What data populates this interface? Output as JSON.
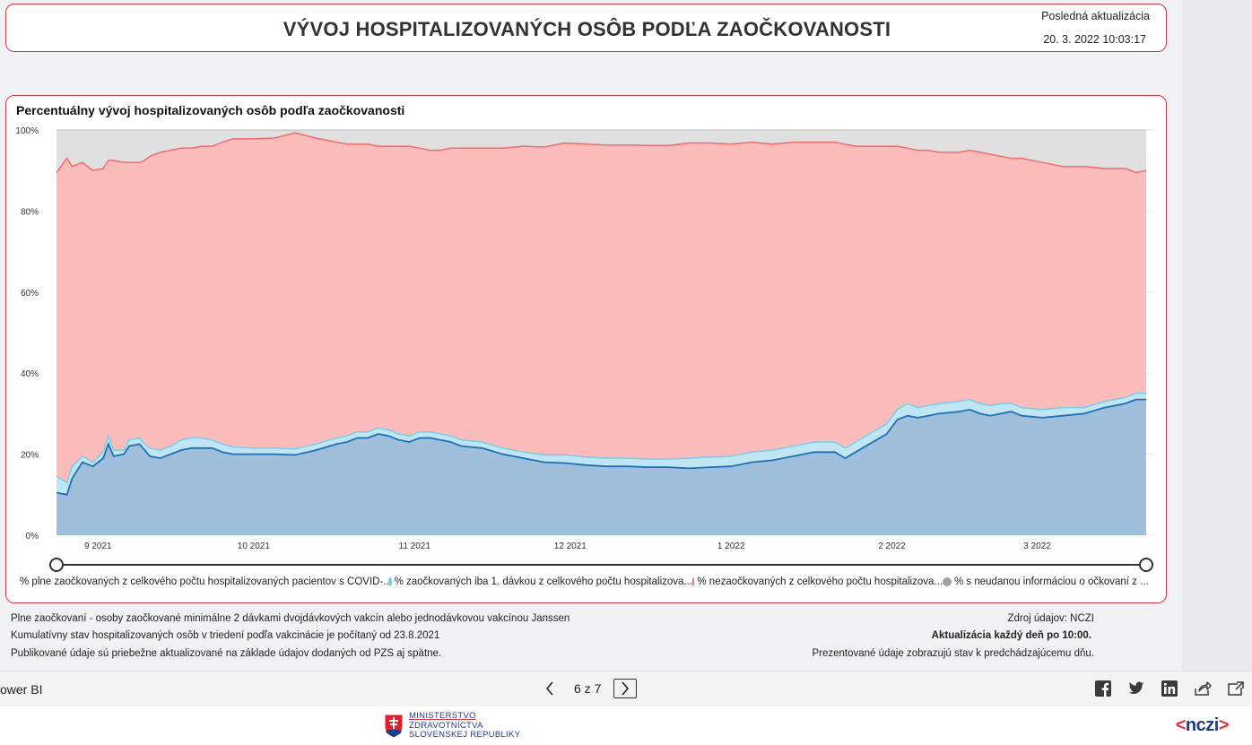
{
  "header": {
    "title": "VÝVOJ HOSPITALIZOVANÝCH OSÔB PODĽA ZAOČKOVANOSTI",
    "last_update_label": "Posledná aktualizácia",
    "last_update_value": "20. 3. 2022 10:03:17"
  },
  "chart_data": {
    "type": "area",
    "stacked": true,
    "title": "Percentuálny vývoj hospitalizovaných osôb podľa zaočkovanosti",
    "y_ticks": [
      "0%",
      "20%",
      "40%",
      "60%",
      "80%",
      "100%"
    ],
    "ylim": [
      0,
      100
    ],
    "x_ticks": [
      "9 2021",
      "10 2021",
      "11 2021",
      "12 2021",
      "1 2022",
      "2 2022",
      "3 2022"
    ],
    "x_range_days": [
      0,
      210
    ],
    "x_tick_days": [
      8,
      38,
      69,
      99,
      130,
      161,
      189
    ],
    "series": [
      {
        "name": "% plne zaočkovaných z celkového počtu hospitalizovaných pacientov s COVID-...",
        "color": "#1f6fb4",
        "fill": "#a0bfdc",
        "points": [
          [
            0,
            10.5
          ],
          [
            2,
            10
          ],
          [
            3,
            14
          ],
          [
            5,
            18
          ],
          [
            7,
            17
          ],
          [
            9,
            19
          ],
          [
            10,
            22.5
          ],
          [
            11,
            19.5
          ],
          [
            13,
            20
          ],
          [
            14,
            22
          ],
          [
            16,
            22.5
          ],
          [
            17,
            21
          ],
          [
            18,
            19.5
          ],
          [
            20,
            19
          ],
          [
            22,
            20
          ],
          [
            24,
            21
          ],
          [
            26,
            21.5
          ],
          [
            28,
            21.5
          ],
          [
            30,
            21.5
          ],
          [
            32,
            20.5
          ],
          [
            34,
            20
          ],
          [
            38,
            20
          ],
          [
            42,
            20
          ],
          [
            46,
            19.8
          ],
          [
            50,
            21
          ],
          [
            54,
            22.5
          ],
          [
            56,
            23
          ],
          [
            58,
            24
          ],
          [
            60,
            24
          ],
          [
            62,
            25
          ],
          [
            64,
            24.5
          ],
          [
            66,
            23.5
          ],
          [
            68,
            23
          ],
          [
            70,
            24
          ],
          [
            72,
            24
          ],
          [
            74,
            23.5
          ],
          [
            76,
            23
          ],
          [
            78,
            22
          ],
          [
            82,
            21.5
          ],
          [
            86,
            20
          ],
          [
            90,
            19
          ],
          [
            94,
            18
          ],
          [
            98,
            17.8
          ],
          [
            102,
            17.3
          ],
          [
            106,
            17
          ],
          [
            110,
            17
          ],
          [
            114,
            16.8
          ],
          [
            118,
            16.8
          ],
          [
            122,
            16.5
          ],
          [
            126,
            16.8
          ],
          [
            130,
            17
          ],
          [
            134,
            18
          ],
          [
            138,
            18.5
          ],
          [
            142,
            19.5
          ],
          [
            146,
            20.5
          ],
          [
            150,
            20.5
          ],
          [
            152,
            19
          ],
          [
            154,
            20.5
          ],
          [
            158,
            23.5
          ],
          [
            160,
            25
          ],
          [
            162,
            28.5
          ],
          [
            164,
            29.5
          ],
          [
            166,
            29
          ],
          [
            168,
            29.5
          ],
          [
            170,
            30
          ],
          [
            174,
            30.5
          ],
          [
            176,
            31
          ],
          [
            178,
            30
          ],
          [
            180,
            29.5
          ],
          [
            182,
            30
          ],
          [
            184,
            30.5
          ],
          [
            186,
            29.5
          ],
          [
            190,
            29
          ],
          [
            194,
            29.5
          ],
          [
            198,
            30
          ],
          [
            202,
            31.5
          ],
          [
            206,
            32.5
          ],
          [
            208,
            33.5
          ],
          [
            210,
            33.5
          ]
        ]
      },
      {
        "name": "% zaočkovaných iba 1. dávkou z celkového počtu hospitalizova...",
        "color": "#76cde8",
        "fill": "#c1e6f3",
        "points": [
          [
            0,
            4
          ],
          [
            2,
            3
          ],
          [
            3,
            3
          ],
          [
            5,
            1.5
          ],
          [
            7,
            1
          ],
          [
            9,
            1.5
          ],
          [
            10,
            2
          ],
          [
            11,
            1.5
          ],
          [
            13,
            1
          ],
          [
            14,
            1.5
          ],
          [
            16,
            1.5
          ],
          [
            17,
            1.5
          ],
          [
            18,
            2
          ],
          [
            20,
            2
          ],
          [
            22,
            2
          ],
          [
            24,
            2.5
          ],
          [
            26,
            2.5
          ],
          [
            28,
            2.5
          ],
          [
            30,
            2
          ],
          [
            32,
            2
          ],
          [
            34,
            1.8
          ],
          [
            38,
            1.5
          ],
          [
            42,
            1.5
          ],
          [
            46,
            1.5
          ],
          [
            50,
            1.5
          ],
          [
            54,
            1.5
          ],
          [
            56,
            1.5
          ],
          [
            58,
            1.5
          ],
          [
            60,
            1.5
          ],
          [
            62,
            1.5
          ],
          [
            64,
            1.5
          ],
          [
            66,
            1.5
          ],
          [
            68,
            1.5
          ],
          [
            70,
            1.5
          ],
          [
            72,
            1.5
          ],
          [
            74,
            1.5
          ],
          [
            76,
            1.5
          ],
          [
            78,
            1.5
          ],
          [
            82,
            1.5
          ],
          [
            86,
            1.5
          ],
          [
            90,
            1.5
          ],
          [
            94,
            1.8
          ],
          [
            98,
            2
          ],
          [
            102,
            2
          ],
          [
            106,
            2
          ],
          [
            110,
            2
          ],
          [
            114,
            2
          ],
          [
            118,
            2
          ],
          [
            122,
            2.5
          ],
          [
            126,
            2.5
          ],
          [
            130,
            2.5
          ],
          [
            134,
            2.5
          ],
          [
            138,
            2.5
          ],
          [
            142,
            2.5
          ],
          [
            146,
            2.5
          ],
          [
            150,
            2.5
          ],
          [
            152,
            2.5
          ],
          [
            154,
            2.5
          ],
          [
            158,
            2.5
          ],
          [
            160,
            2.5
          ],
          [
            162,
            2.5
          ],
          [
            164,
            3
          ],
          [
            166,
            2.5
          ],
          [
            168,
            2.5
          ],
          [
            170,
            2.5
          ],
          [
            174,
            2.5
          ],
          [
            176,
            2.5
          ],
          [
            178,
            2.5
          ],
          [
            180,
            2.5
          ],
          [
            182,
            2.5
          ],
          [
            184,
            2
          ],
          [
            186,
            2
          ],
          [
            190,
            2
          ],
          [
            194,
            2
          ],
          [
            198,
            1.5
          ],
          [
            202,
            1.5
          ],
          [
            206,
            1.5
          ],
          [
            208,
            1.5
          ],
          [
            210,
            1.5
          ]
        ]
      },
      {
        "name": "% nezaočkovaných z celkového počtu hospitalizova...",
        "color": "#f06b6b",
        "fill": "#fdbcbc",
        "points": [
          [
            0,
            75
          ],
          [
            2,
            80
          ],
          [
            3,
            74
          ],
          [
            5,
            72.5
          ],
          [
            7,
            72
          ],
          [
            9,
            70
          ],
          [
            10,
            68
          ],
          [
            11,
            71.5
          ],
          [
            13,
            71
          ],
          [
            14,
            68.5
          ],
          [
            16,
            68
          ],
          [
            17,
            70
          ],
          [
            18,
            72
          ],
          [
            20,
            73.5
          ],
          [
            22,
            73
          ],
          [
            24,
            72
          ],
          [
            26,
            71.5
          ],
          [
            28,
            72
          ],
          [
            30,
            72.5
          ],
          [
            32,
            74.5
          ],
          [
            34,
            76
          ],
          [
            38,
            76.3
          ],
          [
            42,
            76.5
          ],
          [
            46,
            78
          ],
          [
            50,
            75.5
          ],
          [
            54,
            73
          ],
          [
            56,
            72
          ],
          [
            58,
            71
          ],
          [
            60,
            71
          ],
          [
            62,
            69.5
          ],
          [
            64,
            70
          ],
          [
            66,
            71
          ],
          [
            68,
            71.5
          ],
          [
            70,
            70
          ],
          [
            72,
            69.5
          ],
          [
            74,
            70
          ],
          [
            76,
            71
          ],
          [
            78,
            72
          ],
          [
            82,
            72.5
          ],
          [
            86,
            74
          ],
          [
            90,
            75.5
          ],
          [
            94,
            76
          ],
          [
            98,
            77
          ],
          [
            102,
            77.2
          ],
          [
            106,
            77.3
          ],
          [
            110,
            77.3
          ],
          [
            114,
            77.4
          ],
          [
            118,
            77.4
          ],
          [
            122,
            77.8
          ],
          [
            126,
            77.5
          ],
          [
            130,
            77
          ],
          [
            134,
            76.5
          ],
          [
            138,
            75.5
          ],
          [
            142,
            75
          ],
          [
            146,
            74
          ],
          [
            150,
            74
          ],
          [
            152,
            75
          ],
          [
            154,
            73
          ],
          [
            158,
            70
          ],
          [
            160,
            68.5
          ],
          [
            162,
            65
          ],
          [
            164,
            63
          ],
          [
            166,
            63.5
          ],
          [
            168,
            63
          ],
          [
            170,
            62
          ],
          [
            174,
            61.5
          ],
          [
            176,
            61.5
          ],
          [
            178,
            62
          ],
          [
            180,
            62
          ],
          [
            182,
            61
          ],
          [
            184,
            60.5
          ],
          [
            186,
            61.5
          ],
          [
            190,
            61
          ],
          [
            194,
            59.5
          ],
          [
            198,
            59.5
          ],
          [
            202,
            57.5
          ],
          [
            206,
            56.5
          ],
          [
            208,
            54.5
          ],
          [
            210,
            55
          ]
        ]
      },
      {
        "name": "% s neudanou informáciou o očkovaní z ...",
        "color": "#a0a0a0",
        "fill": "#e0e0e0",
        "points": []
      }
    ]
  },
  "legend": [
    {
      "label": "% plne zaočkovaných z celkového počtu hospitalizovaných pacientov s COVID-...",
      "color": "#1f6fb4"
    },
    {
      "label": "% zaočkovaných iba 1. dávkou z celkového počtu hospitalizova...",
      "color": "#76cde8"
    },
    {
      "label": "% nezaočkovaných z celkového počtu hospitalizova...",
      "color": "#f06b6b"
    },
    {
      "label": "% s neudanou informáciou o očkovaní z ...",
      "color": "#a0a0a0"
    }
  ],
  "notes": {
    "left1": "Plne zaočkovaní - osoby zaočkované minimálne 2 dávkami dvojdávkových vakcín alebo jednodávkovou vakcínou Janssen",
    "left2": "Kumulatívny stav hospitalizovaných osôb v triedení podľa vakcinácie je počítaný od 23.8.2021",
    "left3": "Publikované údaje sú priebežne aktualizované na základe údajov dodaných od PZS aj spätne.",
    "right1": "Zdroj údajov: NCZI",
    "right2": "Aktualizácia každý deň po 10:00.",
    "right3": "Prezentované údaje zobrazujú stav k predchádzajúcemu dňu."
  },
  "bottom_bar": {
    "brand": "ower BI",
    "page_indicator": "6 z 7"
  },
  "footer": {
    "ministry_line1": "MINISTERSTVO",
    "ministry_line2": "ZDRAVOTNÍCTVA",
    "ministry_line3": "SLOVENSKEJ REPUBLIKY",
    "nczi_prefix": "<",
    "nczi_text": "nczi",
    "nczi_suffix": ">"
  }
}
